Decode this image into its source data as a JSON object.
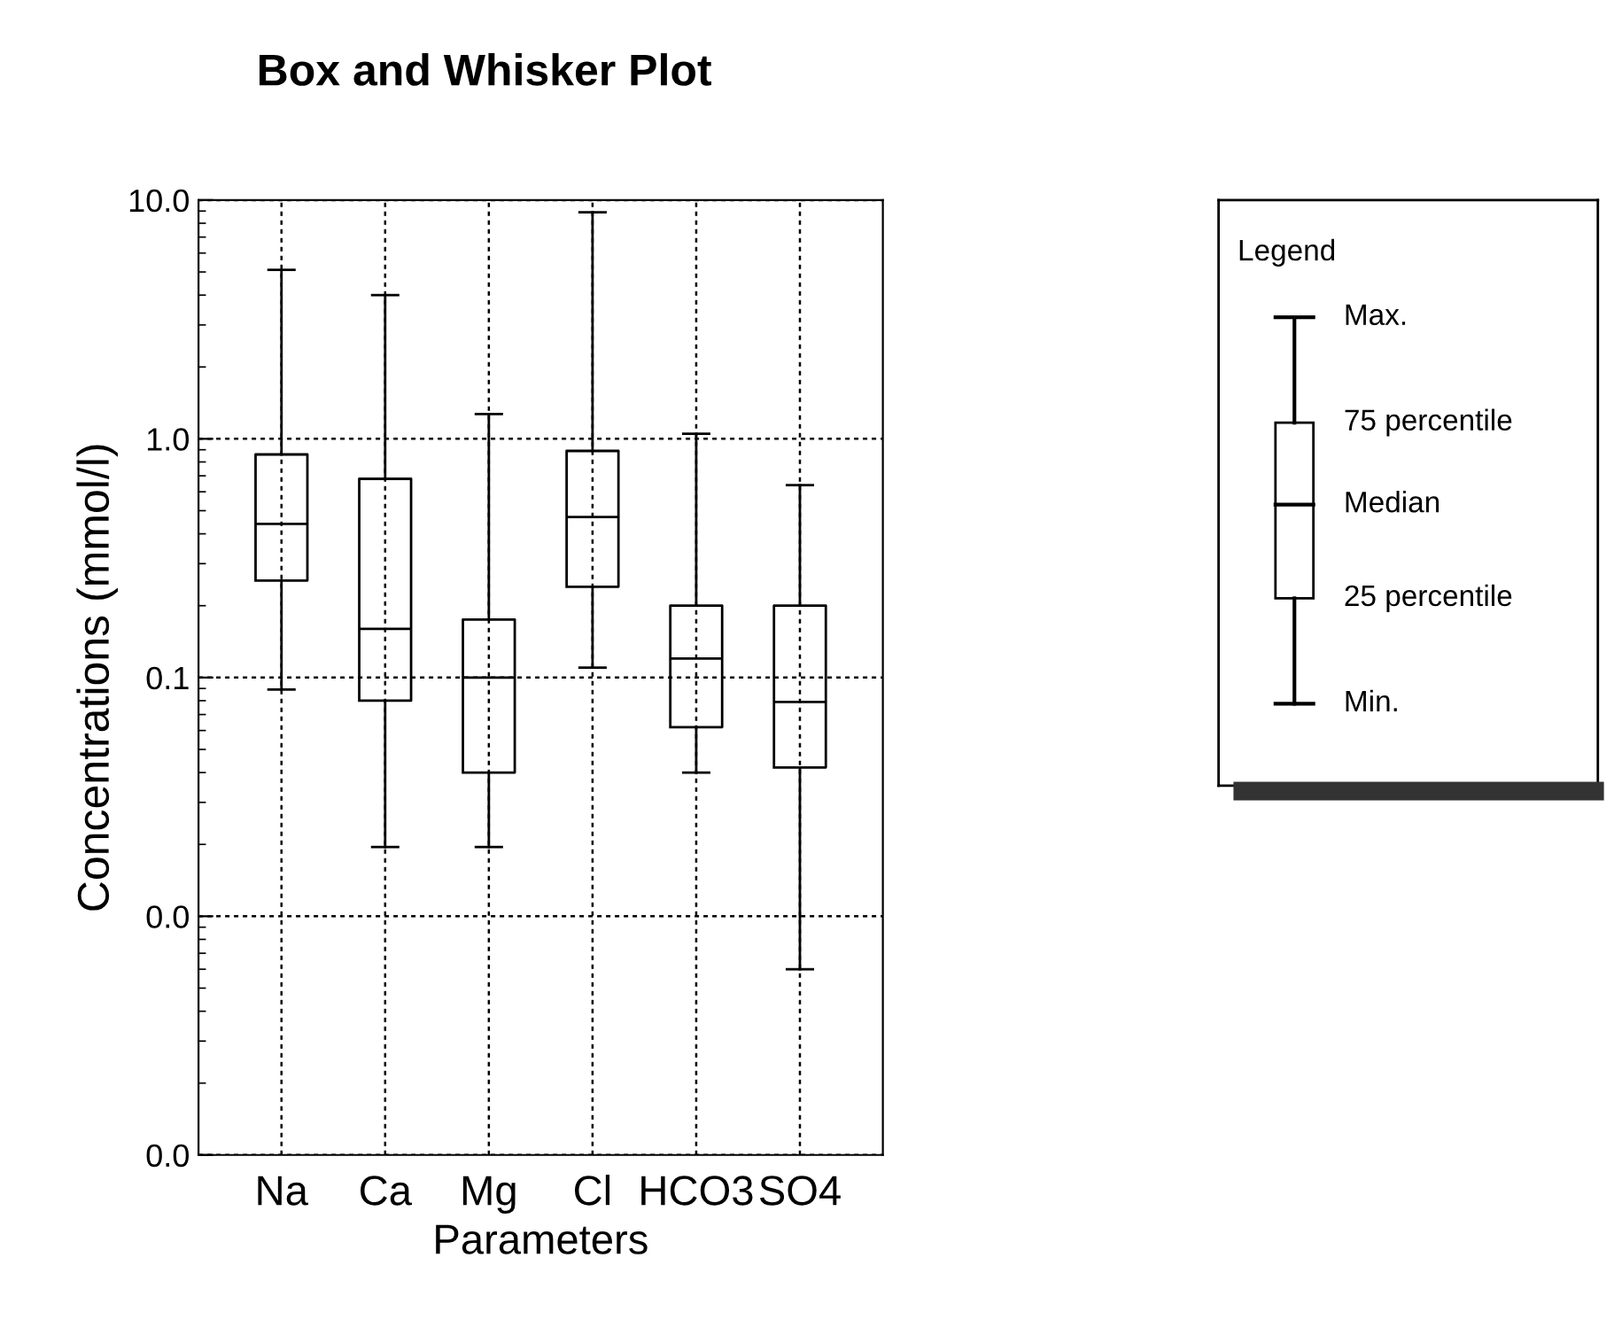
{
  "chart_data": {
    "type": "box",
    "title": "Box and Whisker Plot",
    "xlabel": "Parameters",
    "ylabel": "Concentrations (mmol/l)",
    "categories": [
      "Na",
      "Ca",
      "Mg",
      "Cl",
      "HCO3",
      "SO4"
    ],
    "boxes": [
      {
        "low": 0.089,
        "q1": 0.255,
        "median": 0.44,
        "q3": 0.86,
        "high": 5.1
      },
      {
        "low": 0.0195,
        "q1": 0.08,
        "median": 0.16,
        "q3": 0.68,
        "high": 4.0
      },
      {
        "low": 0.0195,
        "q1": 0.04,
        "median": 0.1,
        "q3": 0.175,
        "high": 1.27
      },
      {
        "low": 0.11,
        "q1": 0.24,
        "median": 0.47,
        "q3": 0.89,
        "high": 8.9
      },
      {
        "low": 0.04,
        "q1": 0.062,
        "median": 0.12,
        "q3": 0.2,
        "high": 1.05
      },
      {
        "low": 0.006,
        "q1": 0.042,
        "median": 0.079,
        "q3": 0.2,
        "high": 0.64
      }
    ],
    "log": "y",
    "ylim": [
      0.001,
      10
    ],
    "yticks": [
      {
        "value": 0.001,
        "label": "0.0"
      },
      {
        "value": 0.01,
        "label": "0.0"
      },
      {
        "value": 0.1,
        "label": "0.1"
      },
      {
        "value": 1,
        "label": "1.0"
      },
      {
        "value": 10,
        "label": "10.0"
      }
    ],
    "grid": true,
    "legend_title": "Legend",
    "annotations": [
      "Max.",
      "75 percentile",
      "Median",
      "25 percentile",
      "Min."
    ]
  }
}
